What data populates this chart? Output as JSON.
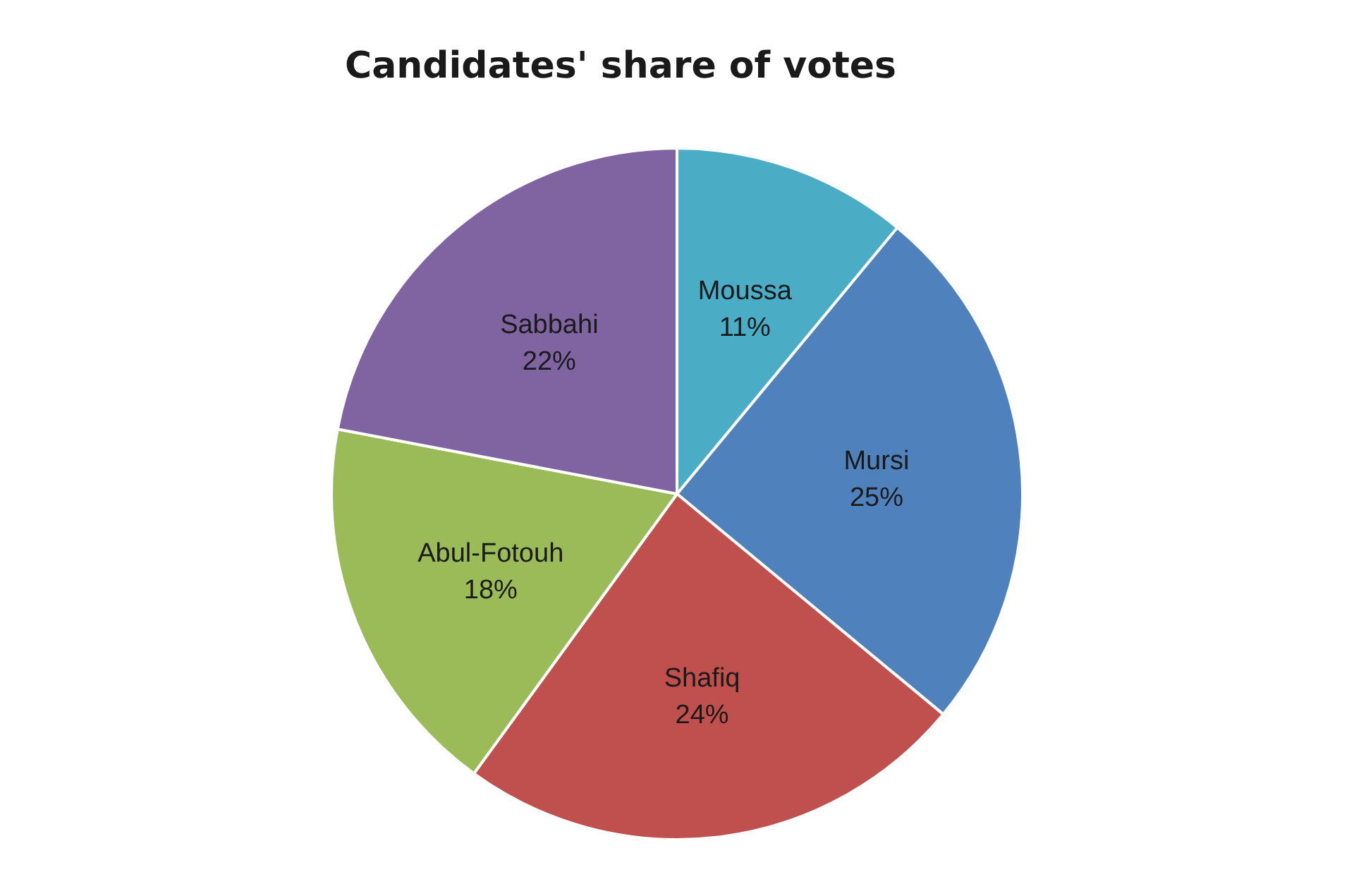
{
  "chart_data": {
    "type": "pie",
    "title": "Candidates' share of votes",
    "categories": [
      "Mursi",
      "Shafiq",
      "Abul-Fotouh",
      "Sabbahi",
      "Moussa"
    ],
    "values": [
      25,
      24,
      18,
      22,
      11
    ],
    "colors": [
      "#4f81bd",
      "#c0504d",
      "#9bbb59",
      "#8064a2",
      "#4bacc6"
    ],
    "value_labels": [
      "25%",
      "24%",
      "18%",
      "22%",
      "11%"
    ],
    "legend": false
  }
}
